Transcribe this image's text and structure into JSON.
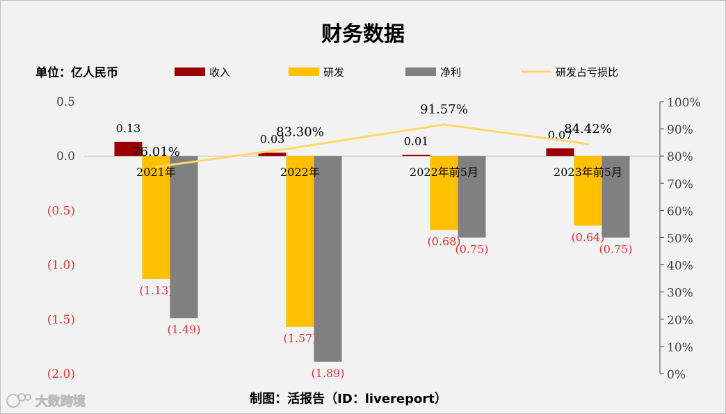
{
  "chart_data": {
    "type": "bar",
    "title": "财务数据",
    "unit_label": "单位：亿人民币",
    "categories": [
      "2021年",
      "2022年",
      "2022年前5月",
      "2023年前5月"
    ],
    "series": [
      {
        "name": "收入",
        "color": "#990000",
        "values": [
          0.13,
          0.03,
          0.01,
          0.07
        ],
        "labels": [
          "0.13",
          "0.03",
          "0.01",
          "0.07"
        ]
      },
      {
        "name": "研发",
        "color": "#ffc000",
        "values": [
          -1.13,
          -1.57,
          -0.68,
          -0.64
        ],
        "labels": [
          "(1.13)",
          "(1.57)",
          "(0.68)",
          "(0.64)"
        ]
      },
      {
        "name": "净利",
        "color": "#808080",
        "values": [
          -1.49,
          -1.89,
          -0.75,
          -0.75
        ],
        "labels": [
          "(1.49)",
          "(1.89)",
          "(0.75)",
          "(0.75)"
        ]
      }
    ],
    "line_series": {
      "name": "研发占亏损比",
      "color": "#ffd966",
      "axis": "right",
      "values": [
        76.01,
        83.3,
        91.57,
        84.42
      ],
      "labels": [
        "76.01%",
        "83.30%",
        "91.57%",
        "84.42%"
      ]
    },
    "y_left": {
      "ylim": [
        -2.0,
        0.5
      ],
      "ticks": [
        {
          "v": 0.5,
          "label": "0.5",
          "color": "#404040"
        },
        {
          "v": 0.0,
          "label": "0.0",
          "color": "#404040"
        },
        {
          "v": -0.5,
          "label": "(0.5)",
          "color": "#e03030"
        },
        {
          "v": -1.0,
          "label": "(1.0)",
          "color": "#e03030"
        },
        {
          "v": -1.5,
          "label": "(1.5)",
          "color": "#e03030"
        },
        {
          "v": -2.0,
          "label": "(2.0)",
          "color": "#e03030"
        }
      ]
    },
    "y_right": {
      "ylim": [
        0,
        100
      ],
      "ticks": [
        "0%",
        "10%",
        "20%",
        "30%",
        "40%",
        "50%",
        "60%",
        "70%",
        "80%",
        "90%",
        "100%"
      ]
    },
    "negative_label_color": "#e03030",
    "positive_label_color": "#404040",
    "legend_position": "top",
    "grid": false
  },
  "footer": {
    "credit": "制图：活报告（ID：livereport）",
    "watermark": "大数跨境"
  }
}
